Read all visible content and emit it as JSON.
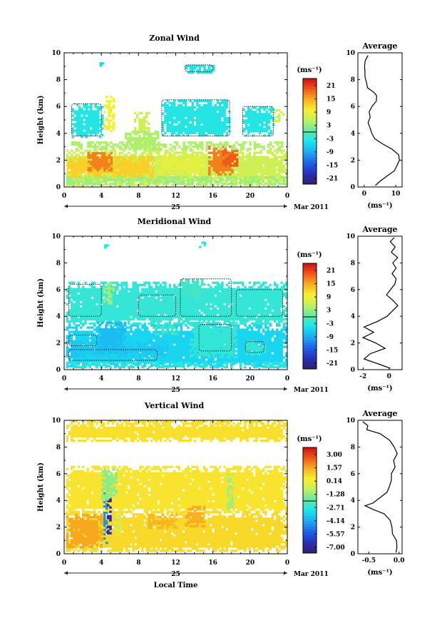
{
  "chart_data": [
    {
      "type": "heatmap",
      "title": "Zonal Wind",
      "ylabel": "Height (km)",
      "xlabel": "",
      "x_ticks": [
        "0",
        "4",
        "8",
        "12",
        "16",
        "20",
        "0"
      ],
      "y_ticks": [
        "0",
        "2",
        "4",
        "6",
        "8",
        "10"
      ],
      "xlim": [
        0,
        24
      ],
      "ylim": [
        0,
        10
      ],
      "date_day": "25",
      "date_label": "Mar 2011",
      "colorbar": {
        "unit": "(ms⁻¹)",
        "labels": [
          "21",
          "15",
          "9",
          "3",
          "-3",
          "-9",
          "-15",
          "-21"
        ],
        "range": [
          -24,
          24
        ]
      },
      "regions": [
        {
          "x": [
            0.2,
            23.8
          ],
          "y": [
            0.2,
            2.8
          ],
          "v": 6
        },
        {
          "x": [
            0.3,
            9.5
          ],
          "y": [
            0.8,
            2.3
          ],
          "v": 12
        },
        {
          "x": [
            2.5,
            5.0
          ],
          "y": [
            1.2,
            2.6
          ],
          "v": 17
        },
        {
          "x": [
            15.5,
            18.0
          ],
          "y": [
            1.0,
            3.1
          ],
          "v": 17
        },
        {
          "x": [
            17.0,
            18.5
          ],
          "y": [
            1.6,
            2.8
          ],
          "v": 19
        },
        {
          "x": [
            0.2,
            23.8
          ],
          "y": [
            0.2,
            0.8
          ],
          "v": 3
        },
        {
          "x": [
            10.0,
            15.0
          ],
          "y": [
            1.0,
            2.4
          ],
          "v": 8
        },
        {
          "x": [
            0.5,
            23.5
          ],
          "y": [
            2.8,
            3.4
          ],
          "v": 4
        },
        {
          "x": [
            0.8,
            4.0
          ],
          "y": [
            3.8,
            6.2
          ],
          "v": -4
        },
        {
          "x": [
            10.5,
            17.8
          ],
          "y": [
            3.8,
            6.5
          ],
          "v": -4
        },
        {
          "x": [
            19.2,
            22.5
          ],
          "y": [
            3.8,
            6.0
          ],
          "v": -4
        },
        {
          "x": [
            4.2,
            5.2
          ],
          "y": [
            4.2,
            6.8
          ],
          "v": 9
        },
        {
          "x": [
            7.5,
            9.0
          ],
          "y": [
            4.0,
            5.6
          ],
          "v": 6
        },
        {
          "x": [
            6.5,
            10.0
          ],
          "y": [
            2.8,
            4.2
          ],
          "v": 4
        },
        {
          "x": [
            22.5,
            23.5
          ],
          "y": [
            5.0,
            5.8
          ],
          "v": 6
        },
        {
          "x": [
            13.0,
            16.0
          ],
          "y": [
            8.6,
            9.1
          ],
          "v": -4
        },
        {
          "x": [
            3.8,
            4.1
          ],
          "y": [
            9.0,
            9.3
          ],
          "v": -6
        }
      ],
      "contours": [
        {
          "x": [
            0.8,
            4.0
          ],
          "y": [
            3.8,
            6.2
          ]
        },
        {
          "x": [
            10.5,
            17.8
          ],
          "y": [
            3.8,
            6.5
          ]
        },
        {
          "x": [
            19.2,
            22.5
          ],
          "y": [
            3.8,
            6.0
          ]
        },
        {
          "x": [
            13.0,
            16.0
          ],
          "y": [
            8.6,
            9.1
          ]
        }
      ],
      "profile": {
        "title": "Average",
        "xlabel": "(ms⁻¹)",
        "x_ticks": [
          "0",
          "10"
        ],
        "xlim": [
          -2,
          12
        ],
        "y_ticks": [
          "0",
          "2",
          "4",
          "6",
          "8",
          "10"
        ],
        "height": [
          0.1,
          0.4,
          0.8,
          1.2,
          1.6,
          2.0,
          2.4,
          2.8,
          3.2,
          3.6,
          4.0,
          4.4,
          4.8,
          5.2,
          5.6,
          6.0,
          6.4,
          6.8,
          7.0,
          7.4,
          7.8,
          8.2,
          8.6,
          9.0,
          9.4,
          9.8
        ],
        "value": [
          3.5,
          4.5,
          7.5,
          9.5,
          10.5,
          11.2,
          10.8,
          9.2,
          6.0,
          3.3,
          2.0,
          1.6,
          1.5,
          1.5,
          1.3,
          2.5,
          3.5,
          4.0,
          3.2,
          1.2,
          0.5,
          0.2,
          0.1,
          0.2,
          0.6,
          1.2
        ]
      }
    },
    {
      "type": "heatmap",
      "title": "Meridional Wind",
      "ylabel": "Height (km)",
      "xlabel": "",
      "x_ticks": [
        "0",
        "4",
        "8",
        "12",
        "16",
        "20",
        "0"
      ],
      "y_ticks": [
        "0",
        "2",
        "4",
        "6",
        "8",
        "10"
      ],
      "xlim": [
        0,
        24
      ],
      "ylim": [
        0,
        10
      ],
      "date_day": "25",
      "date_label": "Mar 2011",
      "colorbar": {
        "unit": "(ms⁻¹)",
        "labels": [
          "21",
          "15",
          "9",
          "3",
          "-3",
          "-9",
          "-15",
          "-21"
        ],
        "range": [
          -24,
          24
        ]
      },
      "regions": [
        {
          "x": [
            0.2,
            23.8
          ],
          "y": [
            0.2,
            3.4
          ],
          "v": -6
        },
        {
          "x": [
            0.2,
            23.8
          ],
          "y": [
            0.2,
            0.6
          ],
          "v": -4
        },
        {
          "x": [
            0.2,
            23.8
          ],
          "y": [
            3.4,
            6.6
          ],
          "v": -3
        },
        {
          "x": [
            0.2,
            11.0
          ],
          "y": [
            1.0,
            2.2
          ],
          "v": -7
        },
        {
          "x": [
            3.5,
            6.5
          ],
          "y": [
            1.2,
            3.6
          ],
          "v": -8
        },
        {
          "x": [
            13.5,
            18.5
          ],
          "y": [
            1.0,
            3.6
          ],
          "v": -3
        },
        {
          "x": [
            9.5,
            12.0
          ],
          "y": [
            2.6,
            3.4
          ],
          "v": -2
        },
        {
          "x": [
            19.5,
            21.5
          ],
          "y": [
            1.2,
            2.2
          ],
          "v": -3
        },
        {
          "x": [
            4.2,
            5.2
          ],
          "y": [
            5.0,
            6.5
          ],
          "v": 3
        },
        {
          "x": [
            12.5,
            15.0
          ],
          "y": [
            5.5,
            6.8
          ],
          "v": -2
        },
        {
          "x": [
            4.3,
            4.6
          ],
          "y": [
            9.1,
            9.4
          ],
          "v": -4
        },
        {
          "x": [
            14.5,
            15.0
          ],
          "y": [
            9.2,
            9.6
          ],
          "v": -3
        }
      ],
      "contours": [
        {
          "x": [
            0.5,
            3.5
          ],
          "y": [
            1.8,
            2.6
          ]
        },
        {
          "x": [
            0.5,
            10.0
          ],
          "y": [
            0.7,
            1.5
          ]
        },
        {
          "x": [
            14.5,
            18.0
          ],
          "y": [
            1.4,
            3.4
          ]
        },
        {
          "x": [
            19.5,
            21.5
          ],
          "y": [
            1.3,
            2.1
          ]
        },
        {
          "x": [
            0.5,
            4.0
          ],
          "y": [
            4.0,
            6.4
          ]
        },
        {
          "x": [
            8.0,
            12.0
          ],
          "y": [
            4.0,
            5.6
          ]
        },
        {
          "x": [
            12.5,
            18.0
          ],
          "y": [
            4.0,
            6.8
          ]
        },
        {
          "x": [
            18.5,
            23.5
          ],
          "y": [
            4.0,
            6.0
          ]
        }
      ],
      "profile": {
        "title": "Average",
        "xlabel": "(ms⁻¹)",
        "x_ticks": [
          "-2",
          "0"
        ],
        "xlim": [
          -2.4,
          1.0
        ],
        "y_ticks": [
          "0",
          "2",
          "4",
          "6",
          "8",
          "10"
        ],
        "height": [
          0.1,
          0.4,
          0.8,
          1.2,
          1.6,
          2.0,
          2.4,
          2.8,
          3.2,
          3.6,
          4.0,
          4.4,
          4.8,
          5.2,
          5.6,
          6.0,
          6.4,
          6.8,
          7.2,
          7.6,
          8.0,
          8.4,
          8.8,
          9.2,
          9.6,
          9.9
        ],
        "value": [
          0.1,
          -0.8,
          -2.0,
          -1.4,
          -0.4,
          -1.0,
          -2.1,
          -1.2,
          -2.0,
          -1.0,
          -0.2,
          0.3,
          0.6,
          0.3,
          -0.2,
          0.1,
          0.5,
          0.6,
          0.2,
          0.5,
          0.3,
          0.6,
          0.2,
          0.5,
          0.1,
          0.4
        ]
      }
    },
    {
      "type": "heatmap",
      "title": "Vertical Wind",
      "ylabel": "Height (km)",
      "xlabel": "Local Time",
      "x_ticks": [
        "0",
        "4",
        "8",
        "12",
        "16",
        "20",
        "0"
      ],
      "y_ticks": [
        "0",
        "2",
        "4",
        "6",
        "8",
        "10"
      ],
      "xlim": [
        0,
        24
      ],
      "ylim": [
        0,
        10
      ],
      "date_day": "25",
      "date_label": "Mar 2011",
      "colorbar": {
        "unit": "(ms⁻¹)",
        "labels": [
          "3.00",
          "1.57",
          "0.14",
          "-1.28",
          "-2.71",
          "-4.14",
          "-5.57",
          "-7.00"
        ],
        "range": [
          -7.5,
          3.5
        ]
      },
      "regions": [
        {
          "x": [
            0.2,
            23.8
          ],
          "y": [
            3.2,
            6.6
          ],
          "v": 0.4
        },
        {
          "x": [
            0.2,
            23.8
          ],
          "y": [
            0.3,
            3.2
          ],
          "v": 0.6
        },
        {
          "x": [
            0.2,
            4.0
          ],
          "y": [
            0.5,
            3.0
          ],
          "v": 1.4
        },
        {
          "x": [
            13.0,
            15.0
          ],
          "y": [
            2.0,
            3.6
          ],
          "v": 1.3
        },
        {
          "x": [
            9.0,
            12.0
          ],
          "y": [
            2.0,
            3.0
          ],
          "v": 1.2
        },
        {
          "x": [
            4.2,
            4.6
          ],
          "y": [
            0.8,
            4.6
          ],
          "v": -4.5
        },
        {
          "x": [
            4.6,
            5.0
          ],
          "y": [
            1.6,
            4.2
          ],
          "v": -6.8
        },
        {
          "x": [
            4.0,
            5.6
          ],
          "y": [
            4.0,
            6.4
          ],
          "v": -1.5
        },
        {
          "x": [
            5.4,
            6.0
          ],
          "y": [
            1.0,
            3.0
          ],
          "v": -0.6
        },
        {
          "x": [
            17.5,
            18.0
          ],
          "y": [
            3.4,
            6.0
          ],
          "v": -1.2
        },
        {
          "x": [
            0.2,
            23.8
          ],
          "y": [
            8.4,
            10.0
          ],
          "v": 0.5
        }
      ],
      "contours": [],
      "profile": {
        "title": "Average",
        "xlabel": "(ms⁻¹)",
        "x_ticks": [
          "-0.5",
          "0.0"
        ],
        "xlim": [
          -0.68,
          0.05
        ],
        "y_ticks": [
          "0",
          "2",
          "4",
          "6",
          "8",
          "10"
        ],
        "height": [
          0.1,
          0.5,
          1.0,
          1.5,
          2.0,
          2.5,
          3.0,
          3.3,
          3.6,
          3.8,
          4.2,
          4.6,
          5.0,
          5.5,
          6.0,
          6.5,
          7.0,
          7.5,
          8.0,
          8.5,
          9.0,
          9.3,
          9.6,
          9.9
        ],
        "value": [
          -0.05,
          -0.02,
          -0.05,
          -0.1,
          -0.12,
          -0.16,
          -0.25,
          -0.4,
          -0.55,
          -0.45,
          -0.3,
          -0.2,
          -0.18,
          -0.14,
          -0.12,
          -0.06,
          -0.08,
          -0.03,
          -0.1,
          -0.15,
          -0.3,
          -0.55,
          -0.5,
          -0.6
        ]
      }
    }
  ]
}
